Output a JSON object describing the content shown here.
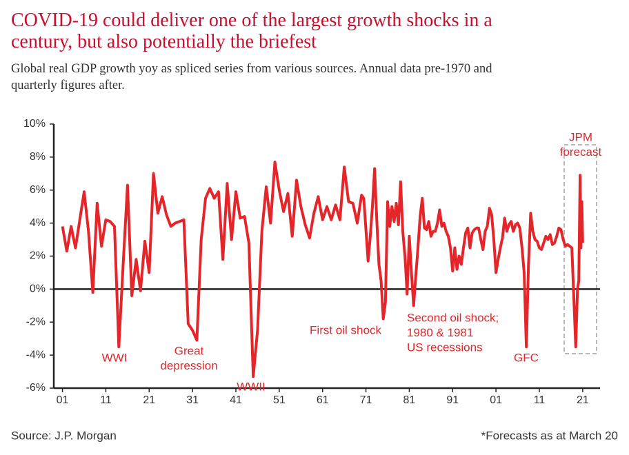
{
  "chart_data": {
    "type": "line",
    "title": [
      "COVID-19 could deliver one of the largest growth shocks in a",
      "century, but also potentially the briefest"
    ],
    "subtitle": [
      "Global real GDP growth yoy as spliced series from various sources. Annual data pre-1970 and",
      "quarterly figures after."
    ],
    "source": "Source: J.P. Morgan",
    "footnote": "*Forecasts as at March 20",
    "annotations": [
      {
        "text": [
          "WWI"
        ]
      },
      {
        "text": [
          "Great",
          "depression"
        ]
      },
      {
        "text": [
          "WWII"
        ]
      },
      {
        "text": [
          "First oil shock"
        ]
      },
      {
        "text": [
          "Second oil shock;",
          "1980 & 1981",
          "US recessions"
        ]
      },
      {
        "text": [
          "GFC"
        ]
      },
      {
        "text": [
          "JPM",
          "forecast"
        ]
      }
    ],
    "xlim": [
      1899,
      2025
    ],
    "ylim": [
      -6,
      10
    ],
    "xticks": [
      {
        "value": 1901,
        "label": "01"
      },
      {
        "value": 1911,
        "label": "11"
      },
      {
        "value": 1921,
        "label": "21"
      },
      {
        "value": 1931,
        "label": "31"
      },
      {
        "value": 1941,
        "label": "41"
      },
      {
        "value": 1951,
        "label": "51"
      },
      {
        "value": 1961,
        "label": "61"
      },
      {
        "value": 1971,
        "label": "71"
      },
      {
        "value": 1981,
        "label": "81"
      },
      {
        "value": 1991,
        "label": "91"
      },
      {
        "value": 2001,
        "label": "01"
      },
      {
        "value": 2011,
        "label": "11"
      },
      {
        "value": 2021,
        "label": "21"
      }
    ],
    "yticks": [
      {
        "value": -6,
        "label": "-6%"
      },
      {
        "value": -4,
        "label": "-4%"
      },
      {
        "value": -2,
        "label": "-2%"
      },
      {
        "value": 0,
        "label": "0%"
      },
      {
        "value": 2,
        "label": "2%"
      },
      {
        "value": 4,
        "label": "4%"
      },
      {
        "value": 6,
        "label": "6%"
      },
      {
        "value": 8,
        "label": "8%"
      },
      {
        "value": 10,
        "label": "10%"
      }
    ],
    "x": [
      1901,
      1902,
      1903,
      1904,
      1905,
      1906,
      1907,
      1908,
      1909,
      1910,
      1911,
      1912,
      1913,
      1914,
      1915,
      1916,
      1917,
      1918,
      1919,
      1920,
      1921,
      1922,
      1923,
      1924,
      1925,
      1926,
      1927,
      1928,
      1929,
      1930,
      1931,
      1932,
      1933,
      1934,
      1935,
      1936,
      1937,
      1938,
      1939,
      1940,
      1941,
      1942,
      1943,
      1944,
      1945,
      1946,
      1947,
      1948,
      1949,
      1950,
      1951,
      1952,
      1953,
      1954,
      1955,
      1956,
      1957,
      1958,
      1959,
      1960,
      1961,
      1962,
      1963,
      1964,
      1965,
      1966,
      1967,
      1968,
      1969,
      1970,
      1970.5,
      1971,
      1971.5,
      1972,
      1972.5,
      1973,
      1973.5,
      1974,
      1974.5,
      1975,
      1975.5,
      1976,
      1976.5,
      1977,
      1977.5,
      1978,
      1978.5,
      1979,
      1979.5,
      1980,
      1980.5,
      1981,
      1981.5,
      1982,
      1982.5,
      1983,
      1983.5,
      1984,
      1984.5,
      1985,
      1985.5,
      1986,
      1986.5,
      1987,
      1987.5,
      1988,
      1988.5,
      1989,
      1989.5,
      1990,
      1990.5,
      1991,
      1991.5,
      1992,
      1992.5,
      1993,
      1993.5,
      1994,
      1994.5,
      1995,
      1995.5,
      1996,
      1996.5,
      1997,
      1997.5,
      1998,
      1998.5,
      1999,
      1999.5,
      2000,
      2000.5,
      2001,
      2001.5,
      2002,
      2002.5,
      2003,
      2003.5,
      2004,
      2004.5,
      2005,
      2005.5,
      2006,
      2006.5,
      2007,
      2007.5,
      2008,
      2008.5,
      2009,
      2009.5,
      2010,
      2010.5,
      2011,
      2011.5,
      2012,
      2012.5,
      2013,
      2013.5,
      2014,
      2014.5,
      2015,
      2015.5,
      2016,
      2016.5,
      2017,
      2017.5,
      2018,
      2018.5,
      2019.4,
      2019.8,
      2020.1,
      2020.4,
      2020.6,
      2020.8,
      2021.0
    ],
    "series": [
      {
        "color": "#e4262b",
        "values": [
          3.8,
          2.3,
          3.8,
          2.5,
          4.2,
          5.9,
          3.5,
          -0.2,
          5.2,
          2.6,
          4.2,
          4.1,
          3.8,
          -3.5,
          1.5,
          6.3,
          -0.4,
          1.8,
          -0.1,
          2.9,
          1.0,
          7.0,
          4.6,
          5.6,
          4.5,
          3.8,
          4.0,
          4.1,
          4.2,
          -2.1,
          -2.5,
          -3.1,
          3.0,
          5.5,
          6.1,
          5.5,
          5.9,
          1.8,
          6.4,
          3.0,
          5.9,
          4.3,
          4.4,
          2.8,
          -5.3,
          -2.5,
          3.5,
          6.2,
          4.0,
          7.7,
          6.0,
          4.7,
          5.8,
          3.2,
          6.6,
          5.0,
          3.9,
          3.1,
          4.6,
          5.6,
          4.2,
          5.0,
          4.2,
          5.1,
          4.2,
          7.4,
          5.3,
          5.2,
          4.0,
          5.7,
          5.5,
          3.6,
          1.7,
          3.2,
          5.0,
          7.3,
          4.2,
          1.5,
          0.5,
          -1.8,
          -0.8,
          5.3,
          3.8,
          5.0,
          4.1,
          5.2,
          3.9,
          6.5,
          3.5,
          2.0,
          -0.3,
          3.2,
          1.0,
          -1.0,
          0.8,
          2.5,
          4.4,
          5.5,
          3.7,
          3.6,
          4.1,
          3.2,
          3.5,
          3.5,
          4.0,
          4.8,
          3.8,
          4.0,
          3.5,
          3.2,
          2.5,
          1.1,
          2.5,
          1.2,
          2.0,
          1.5,
          2.5,
          3.4,
          3.7,
          2.5,
          3.4,
          3.6,
          3.7,
          3.7,
          3.0,
          2.4,
          3.5,
          3.8,
          4.9,
          4.5,
          3.0,
          1.0,
          1.8,
          2.5,
          3.1,
          4.3,
          3.5,
          3.9,
          4.1,
          3.5,
          3.9,
          4.0,
          3.7,
          2.5,
          1.0,
          -3.5,
          1.5,
          4.6,
          3.5,
          3.0,
          2.9,
          2.5,
          2.4,
          2.8,
          3.2,
          3.0,
          3.3,
          2.7,
          2.8,
          3.2,
          3.7,
          3.6,
          3.0,
          2.6,
          2.7,
          2.6,
          2.5,
          -3.5,
          0.0,
          0.5,
          6.9,
          2.5,
          5.3,
          2.8
        ]
      }
    ]
  }
}
